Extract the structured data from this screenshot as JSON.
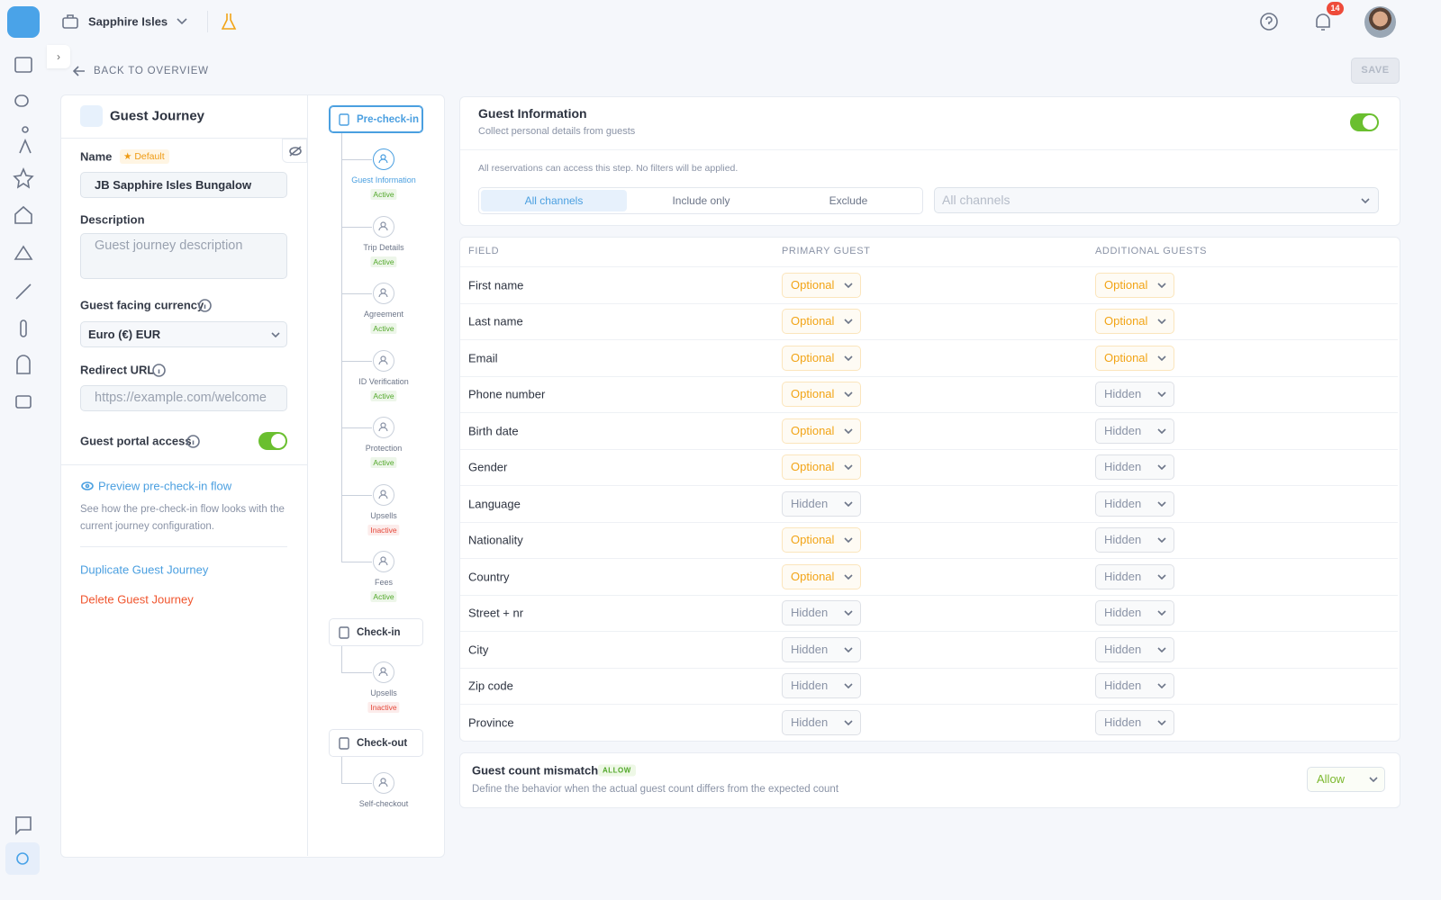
{
  "topbar": {
    "property": "Sapphire Isles",
    "notifications": 14
  },
  "back": "BACK TO OVERVIEW",
  "save": "SAVE",
  "journey": {
    "title": "Guest Journey",
    "name_label": "Name",
    "default_badge": "Default",
    "name_value": "JB Sapphire Isles Bungalow",
    "description_label": "Description",
    "description_placeholder": "Guest journey description",
    "currency_label": "Guest facing currency",
    "currency_value": "Euro (€) EUR",
    "redirect_label": "Redirect URL",
    "redirect_placeholder": "https://example.com/welcome",
    "portal_label": "Guest portal access",
    "preview_link": "Preview pre-check-in flow",
    "preview_desc": "See how the pre-check-in flow looks with the current journey configuration.",
    "duplicate": "Duplicate Guest Journey",
    "delete": "Delete Guest Journey"
  },
  "flow": {
    "status_colors": {
      "Active": "#52a82a",
      "Inactive": "#e5483a"
    },
    "stages": [
      {
        "label": "Pre-check-in",
        "steps": [
          {
            "label": "Guest Information",
            "status": "Active"
          },
          {
            "label": "Trip Details",
            "status": "Active"
          },
          {
            "label": "Agreement",
            "status": "Active"
          },
          {
            "label": "ID Verification",
            "status": "Active"
          },
          {
            "label": "Protection",
            "status": "Active"
          },
          {
            "label": "Upsells",
            "status": "Inactive"
          },
          {
            "label": "Fees",
            "status": "Active"
          }
        ]
      },
      {
        "label": "Check-in",
        "steps": [
          {
            "label": "Upsells",
            "status": "Inactive"
          }
        ]
      },
      {
        "label": "Check-out",
        "steps": [
          {
            "label": "Self-checkout"
          }
        ]
      }
    ]
  },
  "section": {
    "title": "Guest Information",
    "subtitle": "Collect personal details from guests",
    "access_note": "All reservations can access this step. No filters will be applied.",
    "tabs": [
      "All channels",
      "Include only",
      "Exclude"
    ],
    "channel_placeholder": "All channels"
  },
  "table": {
    "headers": [
      "FIELD",
      "PRIMARY GUEST",
      "ADDITIONAL GUESTS"
    ],
    "value_colors": {
      "Optional": "#f2a416",
      "Hidden": "#8a93a6"
    },
    "rows": [
      [
        "First name",
        "Optional",
        "Optional"
      ],
      [
        "Last name",
        "Optional",
        "Optional"
      ],
      [
        "Email",
        "Optional",
        "Optional"
      ],
      [
        "Phone number",
        "Optional",
        "Hidden"
      ],
      [
        "Birth date",
        "Optional",
        "Hidden"
      ],
      [
        "Gender",
        "Optional",
        "Hidden"
      ],
      [
        "Language",
        "Hidden",
        "Hidden"
      ],
      [
        "Nationality",
        "Optional",
        "Hidden"
      ],
      [
        "Country",
        "Optional",
        "Hidden"
      ],
      [
        "Street + nr",
        "Hidden",
        "Hidden"
      ],
      [
        "City",
        "Hidden",
        "Hidden"
      ],
      [
        "Zip code",
        "Hidden",
        "Hidden"
      ],
      [
        "Province",
        "Hidden",
        "Hidden"
      ]
    ]
  },
  "mismatch": {
    "title": "Guest count mismatch",
    "badge": "ALLOW",
    "description": "Define the behavior when the actual guest count differs from the expected count",
    "value": "Allow",
    "value_color": "#7cb82f"
  }
}
